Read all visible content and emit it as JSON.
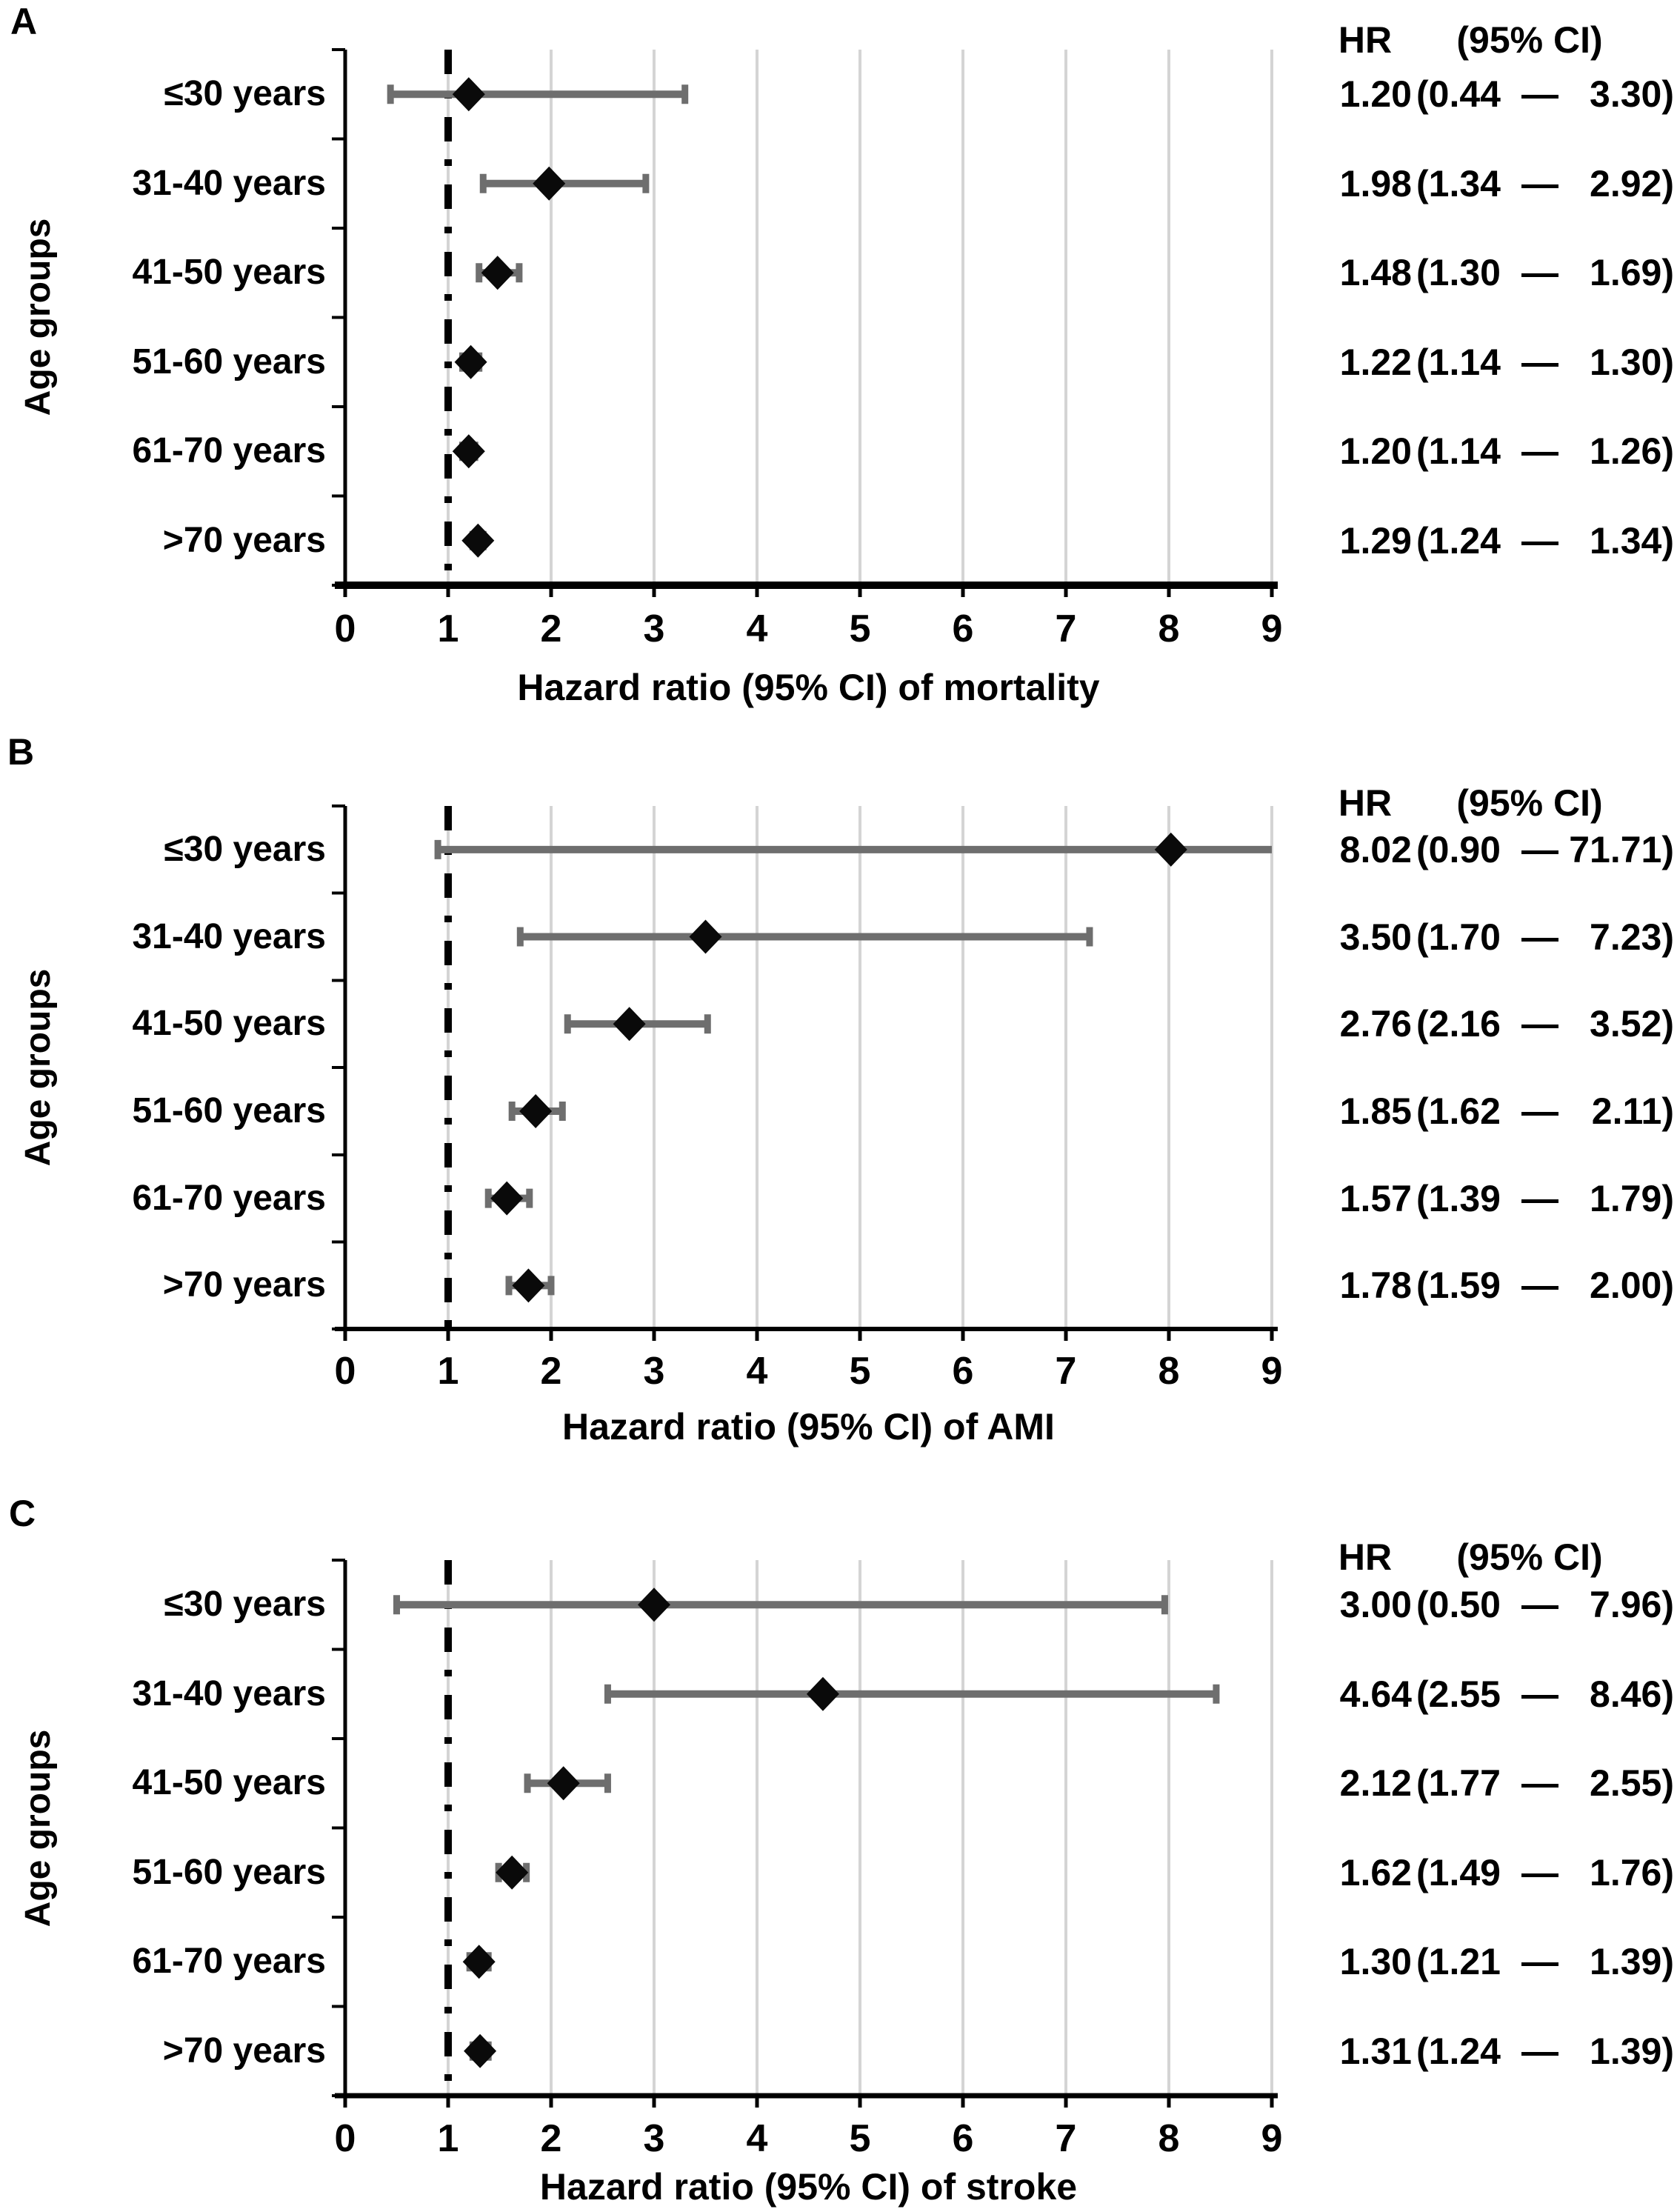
{
  "figure_style": {
    "background": "#ffffff",
    "text_color": "#000000",
    "marker_color": "#0a0a0a",
    "error_bar_color": "#6e6e6e",
    "gridline_color": "#d4d4d4",
    "reference_line_color": "#000000",
    "axis_color": "#000000"
  },
  "chart_data": [
    {
      "type": "scatter",
      "subtype": "forest-plot",
      "panel_letter": "A",
      "xlabel": "Hazard ratio (95% CI) of mortality",
      "ylabel": "Age groups",
      "xlim": [
        0,
        9
      ],
      "x_ticks": [
        "0",
        "1",
        "2",
        "3",
        "4",
        "5",
        "6",
        "7",
        "8",
        "9"
      ],
      "reference_line_x": 1,
      "grid": "vertical-light",
      "legend_position": "none",
      "column_header": {
        "hr": "HR",
        "ci": "(95% CI)"
      },
      "categories": [
        "≤30 years",
        "31-40 years",
        "41-50 years",
        "51-60 years",
        "61-70 years",
        ">70 years"
      ],
      "rows": [
        {
          "label": "≤30 years",
          "hr": 1.2,
          "ci_low": 0.44,
          "ci_high": 3.3,
          "hr_text": "1.20",
          "ci_low_text": "(0.44",
          "dash": "—",
          "ci_high_text": "3.30)"
        },
        {
          "label": "31-40 years",
          "hr": 1.98,
          "ci_low": 1.34,
          "ci_high": 2.92,
          "hr_text": "1.98",
          "ci_low_text": "(1.34",
          "dash": "—",
          "ci_high_text": "2.92)"
        },
        {
          "label": "41-50 years",
          "hr": 1.48,
          "ci_low": 1.3,
          "ci_high": 1.69,
          "hr_text": "1.48",
          "ci_low_text": "(1.30",
          "dash": "—",
          "ci_high_text": "1.69)"
        },
        {
          "label": "51-60 years",
          "hr": 1.22,
          "ci_low": 1.14,
          "ci_high": 1.3,
          "hr_text": "1.22",
          "ci_low_text": "(1.14",
          "dash": "—",
          "ci_high_text": "1.30)"
        },
        {
          "label": "61-70 years",
          "hr": 1.2,
          "ci_low": 1.14,
          "ci_high": 1.26,
          "hr_text": "1.20",
          "ci_low_text": "(1.14",
          "dash": "—",
          "ci_high_text": "1.26)"
        },
        {
          "label": ">70 years",
          "hr": 1.29,
          "ci_low": 1.24,
          "ci_high": 1.34,
          "hr_text": "1.29",
          "ci_low_text": "(1.24",
          "dash": "—",
          "ci_high_text": "1.34)"
        }
      ]
    },
    {
      "type": "scatter",
      "subtype": "forest-plot",
      "panel_letter": "B",
      "xlabel": "Hazard ratio (95% CI) of AMI",
      "ylabel": "Age groups",
      "xlim": [
        0,
        9
      ],
      "x_ticks": [
        "0",
        "1",
        "2",
        "3",
        "4",
        "5",
        "6",
        "7",
        "8",
        "9"
      ],
      "reference_line_x": 1,
      "grid": "vertical-light",
      "legend_position": "none",
      "column_header": {
        "hr": "HR",
        "ci": "(95% CI)"
      },
      "categories": [
        "≤30 years",
        "31-40 years",
        "41-50 years",
        "51-60 years",
        "61-70 years",
        ">70 years"
      ],
      "rows": [
        {
          "label": "≤30 years",
          "hr": 8.02,
          "ci_low": 0.9,
          "ci_high": 71.71,
          "hr_text": "8.02",
          "ci_low_text": "(0.90",
          "dash": "—",
          "ci_high_text": "71.71)"
        },
        {
          "label": "31-40 years",
          "hr": 3.5,
          "ci_low": 1.7,
          "ci_high": 7.23,
          "hr_text": "3.50",
          "ci_low_text": "(1.70",
          "dash": "—",
          "ci_high_text": "7.23)"
        },
        {
          "label": "41-50 years",
          "hr": 2.76,
          "ci_low": 2.16,
          "ci_high": 3.52,
          "hr_text": "2.76",
          "ci_low_text": "(2.16",
          "dash": "—",
          "ci_high_text": "3.52)"
        },
        {
          "label": "51-60 years",
          "hr": 1.85,
          "ci_low": 1.62,
          "ci_high": 2.11,
          "hr_text": "1.85",
          "ci_low_text": "(1.62",
          "dash": "—",
          "ci_high_text": "2.11)"
        },
        {
          "label": "61-70 years",
          "hr": 1.57,
          "ci_low": 1.39,
          "ci_high": 1.79,
          "hr_text": "1.57",
          "ci_low_text": "(1.39",
          "dash": "—",
          "ci_high_text": "1.79)"
        },
        {
          "label": ">70 years",
          "hr": 1.78,
          "ci_low": 1.59,
          "ci_high": 2.0,
          "hr_text": "1.78",
          "ci_low_text": "(1.59",
          "dash": "—",
          "ci_high_text": "2.00)"
        }
      ]
    },
    {
      "type": "scatter",
      "subtype": "forest-plot",
      "panel_letter": "C",
      "xlabel": "Hazard ratio (95% CI) of stroke",
      "ylabel": "Age groups",
      "xlim": [
        0,
        9
      ],
      "x_ticks": [
        "0",
        "1",
        "2",
        "3",
        "4",
        "5",
        "6",
        "7",
        "8",
        "9"
      ],
      "reference_line_x": 1,
      "grid": "vertical-light",
      "legend_position": "none",
      "column_header": {
        "hr": "HR",
        "ci": "(95% CI)"
      },
      "categories": [
        "≤30 years",
        "31-40 years",
        "41-50 years",
        "51-60 years",
        "61-70 years",
        ">70 years"
      ],
      "rows": [
        {
          "label": "≤30 years",
          "hr": 3.0,
          "ci_low": 0.5,
          "ci_high": 7.96,
          "hr_text": "3.00",
          "ci_low_text": "(0.50",
          "dash": "—",
          "ci_high_text": "7.96)"
        },
        {
          "label": "31-40 years",
          "hr": 4.64,
          "ci_low": 2.55,
          "ci_high": 8.46,
          "hr_text": "4.64",
          "ci_low_text": "(2.55",
          "dash": "—",
          "ci_high_text": "8.46)"
        },
        {
          "label": "41-50 years",
          "hr": 2.12,
          "ci_low": 1.77,
          "ci_high": 2.55,
          "hr_text": "2.12",
          "ci_low_text": "(1.77",
          "dash": "—",
          "ci_high_text": "2.55)"
        },
        {
          "label": "51-60 years",
          "hr": 1.62,
          "ci_low": 1.49,
          "ci_high": 1.76,
          "hr_text": "1.62",
          "ci_low_text": "(1.49",
          "dash": "—",
          "ci_high_text": "1.76)"
        },
        {
          "label": "61-70 years",
          "hr": 1.3,
          "ci_low": 1.21,
          "ci_high": 1.39,
          "hr_text": "1.30",
          "ci_low_text": "(1.21",
          "dash": "—",
          "ci_high_text": "1.39)"
        },
        {
          "label": ">70 years",
          "hr": 1.31,
          "ci_low": 1.24,
          "ci_high": 1.39,
          "hr_text": "1.31",
          "ci_low_text": "(1.24",
          "dash": "—",
          "ci_high_text": "1.39)"
        }
      ]
    }
  ]
}
